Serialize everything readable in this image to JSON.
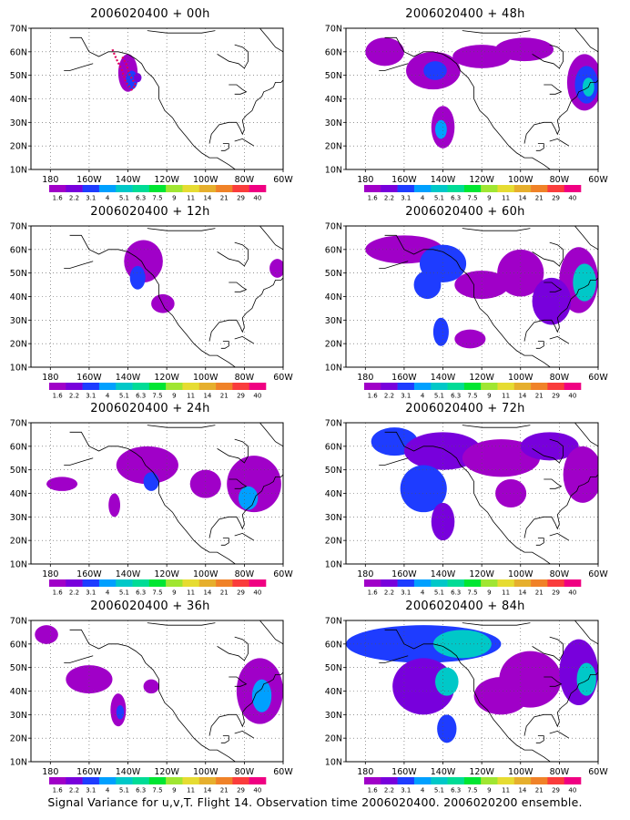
{
  "panels": [
    {
      "id": "p00",
      "title": "2006020400 + 00h"
    },
    {
      "id": "p48",
      "title": "2006020400 + 48h"
    },
    {
      "id": "p12",
      "title": "2006020400 + 12h"
    },
    {
      "id": "p60",
      "title": "2006020400 + 60h"
    },
    {
      "id": "p24",
      "title": "2006020400 + 24h"
    },
    {
      "id": "p72",
      "title": "2006020400 + 72h"
    },
    {
      "id": "p36",
      "title": "2006020400 + 36h"
    },
    {
      "id": "p84",
      "title": "2006020400 + 84h"
    }
  ],
  "lat_labels": [
    "10N",
    "20N",
    "30N",
    "40N",
    "50N",
    "60N",
    "70N"
  ],
  "lon_labels": [
    "180",
    "160W",
    "140W",
    "120W",
    "100W",
    "80W",
    "60W"
  ],
  "colorbar": {
    "labels": [
      "1.6",
      "2.2",
      "3.1",
      "4",
      "5.1",
      "6.3",
      "7.5",
      "9",
      "11",
      "14",
      "21",
      "29",
      "40"
    ],
    "colors": [
      "#a000c8",
      "#7800dc",
      "#1e3cff",
      "#00a0ff",
      "#00c8c8",
      "#00dc96",
      "#00e632",
      "#a0e632",
      "#e6dc32",
      "#e6af2d",
      "#f08228",
      "#fa3c3c",
      "#f00082"
    ]
  },
  "caption": "Signal Variance for u,v,T. Flight 14. Observation time 2006020400. 2006020200 ensemble."
}
